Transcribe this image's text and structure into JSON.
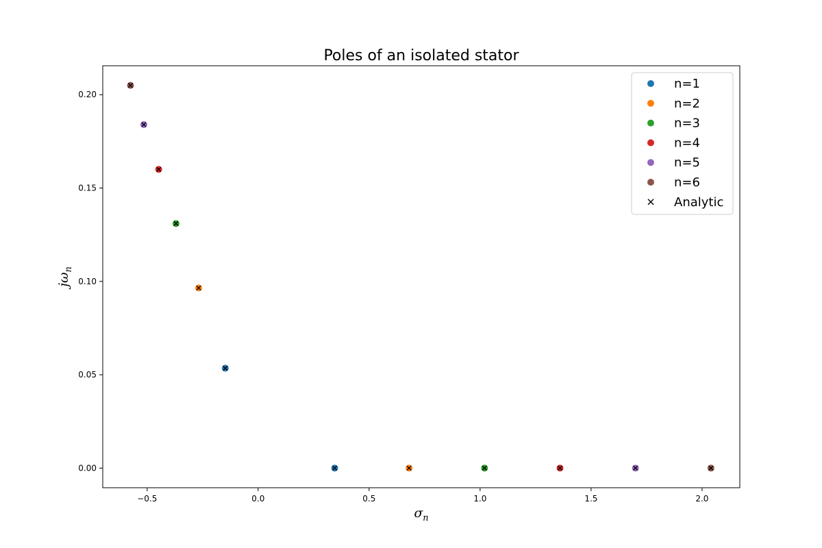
{
  "chart_data": {
    "type": "scatter",
    "title": "Poles of an isolated stator",
    "xlabel": {
      "base": "σ",
      "sub": "n"
    },
    "ylabel": {
      "base": "jω",
      "sub": "n"
    },
    "xlim": [
      -0.7,
      2.17
    ],
    "ylim": [
      -0.0105,
      0.2155
    ],
    "xticks": [
      -0.5,
      0.0,
      0.5,
      1.0,
      1.5,
      2.0
    ],
    "xtick_labels": [
      "−0.5",
      "0.0",
      "0.5",
      "1.0",
      "1.5",
      "2.0"
    ],
    "yticks": [
      0.0,
      0.05,
      0.1,
      0.15,
      0.2
    ],
    "ytick_labels": [
      "0.00",
      "0.05",
      "0.10",
      "0.15",
      "0.20"
    ],
    "grid": false,
    "legend_position": "top-right",
    "series": [
      {
        "name": "n=1",
        "color": "#1f77b4",
        "marker": "circle",
        "points": [
          {
            "x": -0.148,
            "y": 0.0535
          },
          {
            "x": 0.345,
            "y": 0.0
          }
        ]
      },
      {
        "name": "n=2",
        "color": "#ff7f0e",
        "marker": "circle",
        "points": [
          {
            "x": -0.268,
            "y": 0.0965
          },
          {
            "x": 0.68,
            "y": 0.0
          }
        ]
      },
      {
        "name": "n=3",
        "color": "#2ca02c",
        "marker": "circle",
        "points": [
          {
            "x": -0.37,
            "y": 0.131
          },
          {
            "x": 1.02,
            "y": 0.0
          }
        ]
      },
      {
        "name": "n=4",
        "color": "#d62728",
        "marker": "circle",
        "points": [
          {
            "x": -0.448,
            "y": 0.16
          },
          {
            "x": 1.36,
            "y": 0.0
          }
        ]
      },
      {
        "name": "n=5",
        "color": "#9467bd",
        "marker": "circle",
        "points": [
          {
            "x": -0.515,
            "y": 0.184
          },
          {
            "x": 1.7,
            "y": 0.0
          }
        ]
      },
      {
        "name": "n=6",
        "color": "#8c564b",
        "marker": "circle",
        "points": [
          {
            "x": -0.575,
            "y": 0.205
          },
          {
            "x": 2.04,
            "y": 0.0
          }
        ]
      },
      {
        "name": "Analytic",
        "color": "#000000",
        "marker": "x",
        "points": [
          {
            "x": -0.148,
            "y": 0.0535
          },
          {
            "x": 0.345,
            "y": 0.0
          },
          {
            "x": -0.268,
            "y": 0.0965
          },
          {
            "x": 0.68,
            "y": 0.0
          },
          {
            "x": -0.37,
            "y": 0.131
          },
          {
            "x": 1.02,
            "y": 0.0
          },
          {
            "x": -0.448,
            "y": 0.16
          },
          {
            "x": 1.36,
            "y": 0.0
          },
          {
            "x": -0.515,
            "y": 0.184
          },
          {
            "x": 1.7,
            "y": 0.0
          },
          {
            "x": -0.575,
            "y": 0.205
          },
          {
            "x": 2.04,
            "y": 0.0
          }
        ]
      }
    ]
  }
}
